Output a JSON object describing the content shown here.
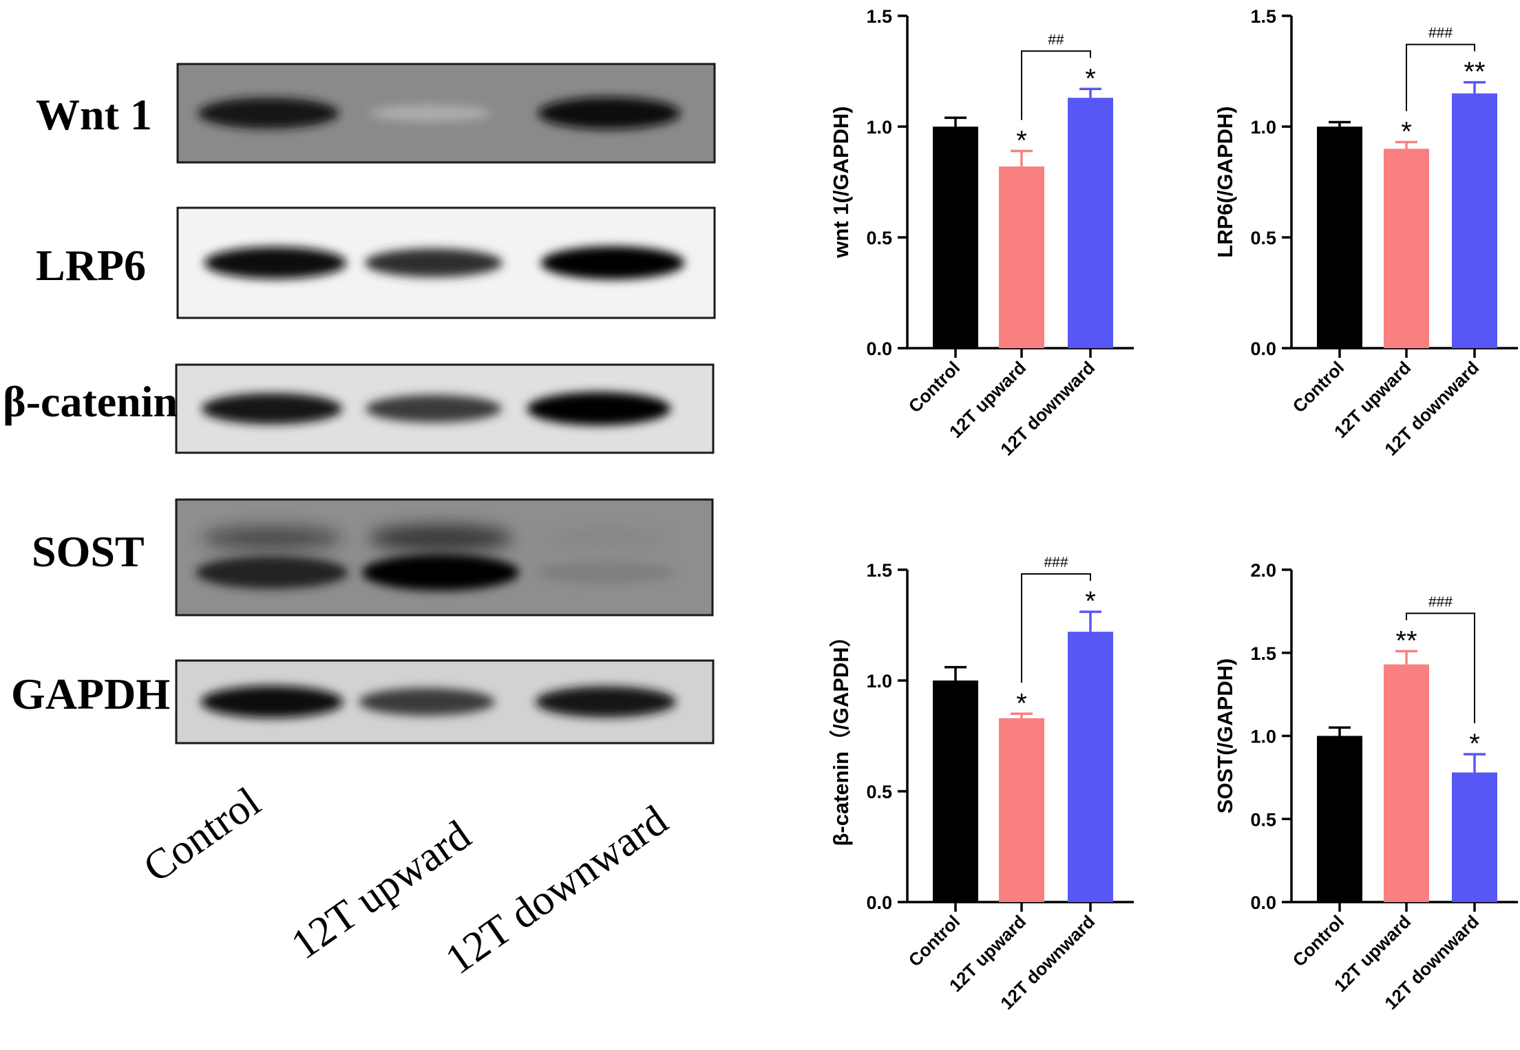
{
  "blot": {
    "bands": [
      {
        "label": "Wnt 1",
        "intensities": [
          0.9,
          0.25,
          0.95
        ]
      },
      {
        "label": "LRP6",
        "intensities": [
          0.95,
          0.8,
          1.0
        ]
      },
      {
        "label": "β-catenin",
        "intensities": [
          0.9,
          0.75,
          1.0
        ]
      },
      {
        "label": "SOST",
        "intensities": [
          0.85,
          1.0,
          0.45
        ]
      },
      {
        "label": "GAPDH",
        "intensities": [
          0.95,
          0.75,
          0.9
        ]
      }
    ],
    "conditions": [
      "Control",
      "12T upward",
      "12T downward"
    ]
  },
  "chart_data": [
    {
      "type": "bar",
      "categories": [
        "Control",
        "12T upward",
        "12T downward"
      ],
      "values": [
        1.0,
        0.82,
        1.13
      ],
      "errors": [
        0.04,
        0.07,
        0.04
      ],
      "ylabel": "wnt 1(/GAPDH)",
      "ylim": [
        0,
        1.5
      ],
      "yticks": [
        "0.0",
        "0.5",
        "1.0",
        "1.5"
      ],
      "significance": [
        "",
        "*",
        "*"
      ],
      "bracket": {
        "from": 1,
        "to": 2,
        "label": "##"
      },
      "colors": [
        "#000000",
        "#f88080",
        "#5757f5"
      ]
    },
    {
      "type": "bar",
      "categories": [
        "Control",
        "12T upward",
        "12T downward"
      ],
      "values": [
        1.0,
        0.9,
        1.15
      ],
      "errors": [
        0.02,
        0.03,
        0.05
      ],
      "ylabel": "LRP6(/GAPDH)",
      "ylim": [
        0,
        1.5
      ],
      "yticks": [
        "0.0",
        "0.5",
        "1.0",
        "1.5"
      ],
      "significance": [
        "",
        "*",
        "**"
      ],
      "bracket": {
        "from": 1,
        "to": 2,
        "label": "###"
      },
      "colors": [
        "#000000",
        "#f88080",
        "#5757f5"
      ]
    },
    {
      "type": "bar",
      "categories": [
        "Control",
        "12T upward",
        "12T downward"
      ],
      "values": [
        1.0,
        0.83,
        1.22
      ],
      "errors": [
        0.06,
        0.02,
        0.09
      ],
      "ylabel": "β-catenin（/GAPDH）",
      "ylim": [
        0,
        1.5
      ],
      "yticks": [
        "0.0",
        "0.5",
        "1.0",
        "1.5"
      ],
      "significance": [
        "",
        "*",
        "*"
      ],
      "bracket": {
        "from": 1,
        "to": 2,
        "label": "###"
      },
      "colors": [
        "#000000",
        "#f88080",
        "#5757f5"
      ]
    },
    {
      "type": "bar",
      "categories": [
        "Control",
        "12T upward",
        "12T downward"
      ],
      "values": [
        1.0,
        1.43,
        0.78
      ],
      "errors": [
        0.05,
        0.08,
        0.11
      ],
      "ylabel": "SOST(/GAPDH)",
      "ylim": [
        0,
        2.0
      ],
      "yticks": [
        "0.0",
        "0.5",
        "1.0",
        "1.5",
        "2.0"
      ],
      "significance": [
        "",
        "**",
        "*"
      ],
      "bracket": {
        "from": 1,
        "to": 2,
        "label": "###"
      },
      "colors": [
        "#000000",
        "#f88080",
        "#5757f5"
      ]
    }
  ]
}
